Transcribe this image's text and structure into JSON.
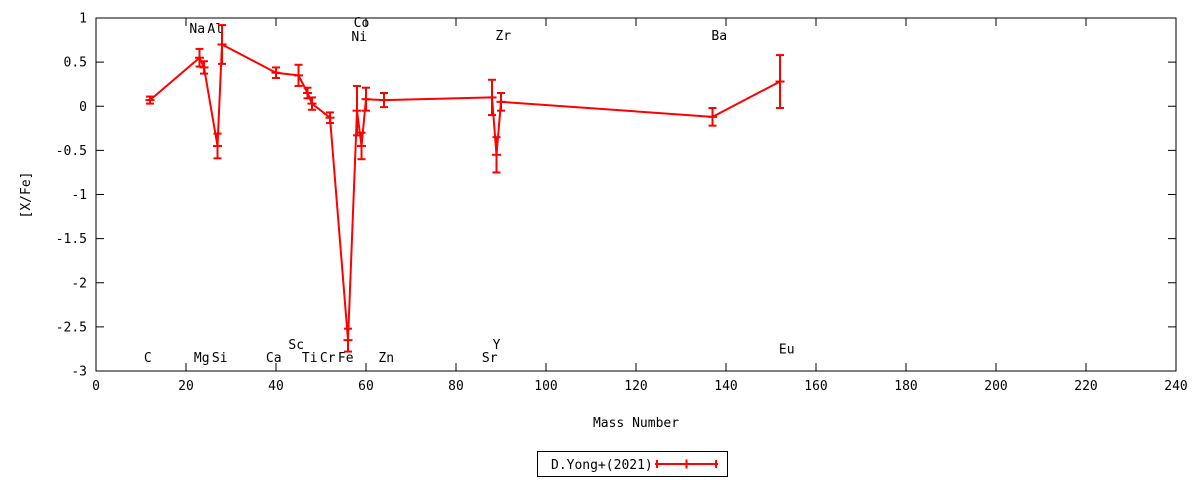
{
  "chart_data": {
    "type": "line",
    "title": "",
    "xlabel": "Mass Number",
    "ylabel": "[X/Fe]",
    "xlim": [
      0,
      240
    ],
    "ylim": [
      -3,
      1
    ],
    "xticks": [
      0,
      20,
      40,
      60,
      80,
      100,
      120,
      140,
      160,
      180,
      200,
      220,
      240
    ],
    "yticks": [
      1,
      0.5,
      0,
      -0.5,
      -1,
      -1.5,
      -2,
      -2.5,
      -3
    ],
    "grid": false,
    "legend": {
      "label": "D.Yong+(2021)",
      "position": "bottom-center-outside"
    },
    "series": [
      {
        "name": "D.Yong+(2021)",
        "color": "#ff0000",
        "style": "line-with-yerrorbars",
        "points": [
          {
            "element": "C",
            "mass": 12,
            "value": 0.07,
            "err": 0.04
          },
          {
            "element": "Na",
            "mass": 23,
            "value": 0.55,
            "err": 0.1
          },
          {
            "element": "Mg",
            "mass": 24,
            "value": 0.44,
            "err": 0.07
          },
          {
            "element": "Al",
            "mass": 27,
            "value": -0.45,
            "err": 0.14
          },
          {
            "element": "Si",
            "mass": 28,
            "value": 0.7,
            "err": 0.22
          },
          {
            "element": "Ca",
            "mass": 40,
            "value": 0.38,
            "err": 0.06
          },
          {
            "element": "Sc",
            "mass": 45,
            "value": 0.35,
            "err": 0.12
          },
          {
            "element": "Ti",
            "mass": 47,
            "value": 0.15,
            "err": 0.06
          },
          {
            "element": "Ti",
            "mass": 48,
            "value": 0.03,
            "err": 0.07
          },
          {
            "element": "Cr",
            "mass": 52,
            "value": -0.13,
            "err": 0.06
          },
          {
            "element": "Fe",
            "mass": 56,
            "value": -2.65,
            "err": 0.13
          },
          {
            "element": "Co",
            "mass": 58,
            "value": -0.05,
            "err": 0.28
          },
          {
            "element": "Co",
            "mass": 59,
            "value": -0.45,
            "err": 0.15
          },
          {
            "element": "Ni",
            "mass": 60,
            "value": 0.08,
            "err": 0.13
          },
          {
            "element": "Zn",
            "mass": 64,
            "value": 0.07,
            "err": 0.08
          },
          {
            "element": "Sr",
            "mass": 88,
            "value": 0.1,
            "err": 0.2
          },
          {
            "element": "Y",
            "mass": 89,
            "value": -0.55,
            "err": 0.2
          },
          {
            "element": "Zr",
            "mass": 90,
            "value": 0.05,
            "err": 0.1
          },
          {
            "element": "Ba",
            "mass": 137,
            "value": -0.12,
            "err": 0.1
          },
          {
            "element": "Eu",
            "mass": 152,
            "value": 0.28,
            "err": 0.3
          }
        ]
      }
    ],
    "annotations": [
      {
        "text": "C",
        "mass": 11.5,
        "y": -2.9
      },
      {
        "text": "Na",
        "mass": 22.5,
        "y": 0.83
      },
      {
        "text": "Al",
        "mass": 26.5,
        "y": 0.83
      },
      {
        "text": "Mg",
        "mass": 23.5,
        "y": -2.9
      },
      {
        "text": "Si",
        "mass": 27.5,
        "y": -2.9
      },
      {
        "text": "Ca",
        "mass": 39.5,
        "y": -2.9
      },
      {
        "text": "Sc",
        "mass": 44.5,
        "y": -2.75
      },
      {
        "text": "Ti",
        "mass": 47.5,
        "y": -2.9
      },
      {
        "text": "Cr",
        "mass": 51.5,
        "y": -2.9
      },
      {
        "text": "Fe",
        "mass": 55.5,
        "y": -2.9
      },
      {
        "text": "Co",
        "mass": 59.0,
        "y": 0.9
      },
      {
        "text": "Ni",
        "mass": 58.5,
        "y": 0.74
      },
      {
        "text": "Zn",
        "mass": 64.5,
        "y": -2.9
      },
      {
        "text": "Sr",
        "mass": 87.5,
        "y": -2.9
      },
      {
        "text": "Y",
        "mass": 89.0,
        "y": -2.75
      },
      {
        "text": "Zr",
        "mass": 90.5,
        "y": 0.75
      },
      {
        "text": "Ba",
        "mass": 138.5,
        "y": 0.75
      },
      {
        "text": "Eu",
        "mass": 153.5,
        "y": -2.8
      }
    ]
  }
}
